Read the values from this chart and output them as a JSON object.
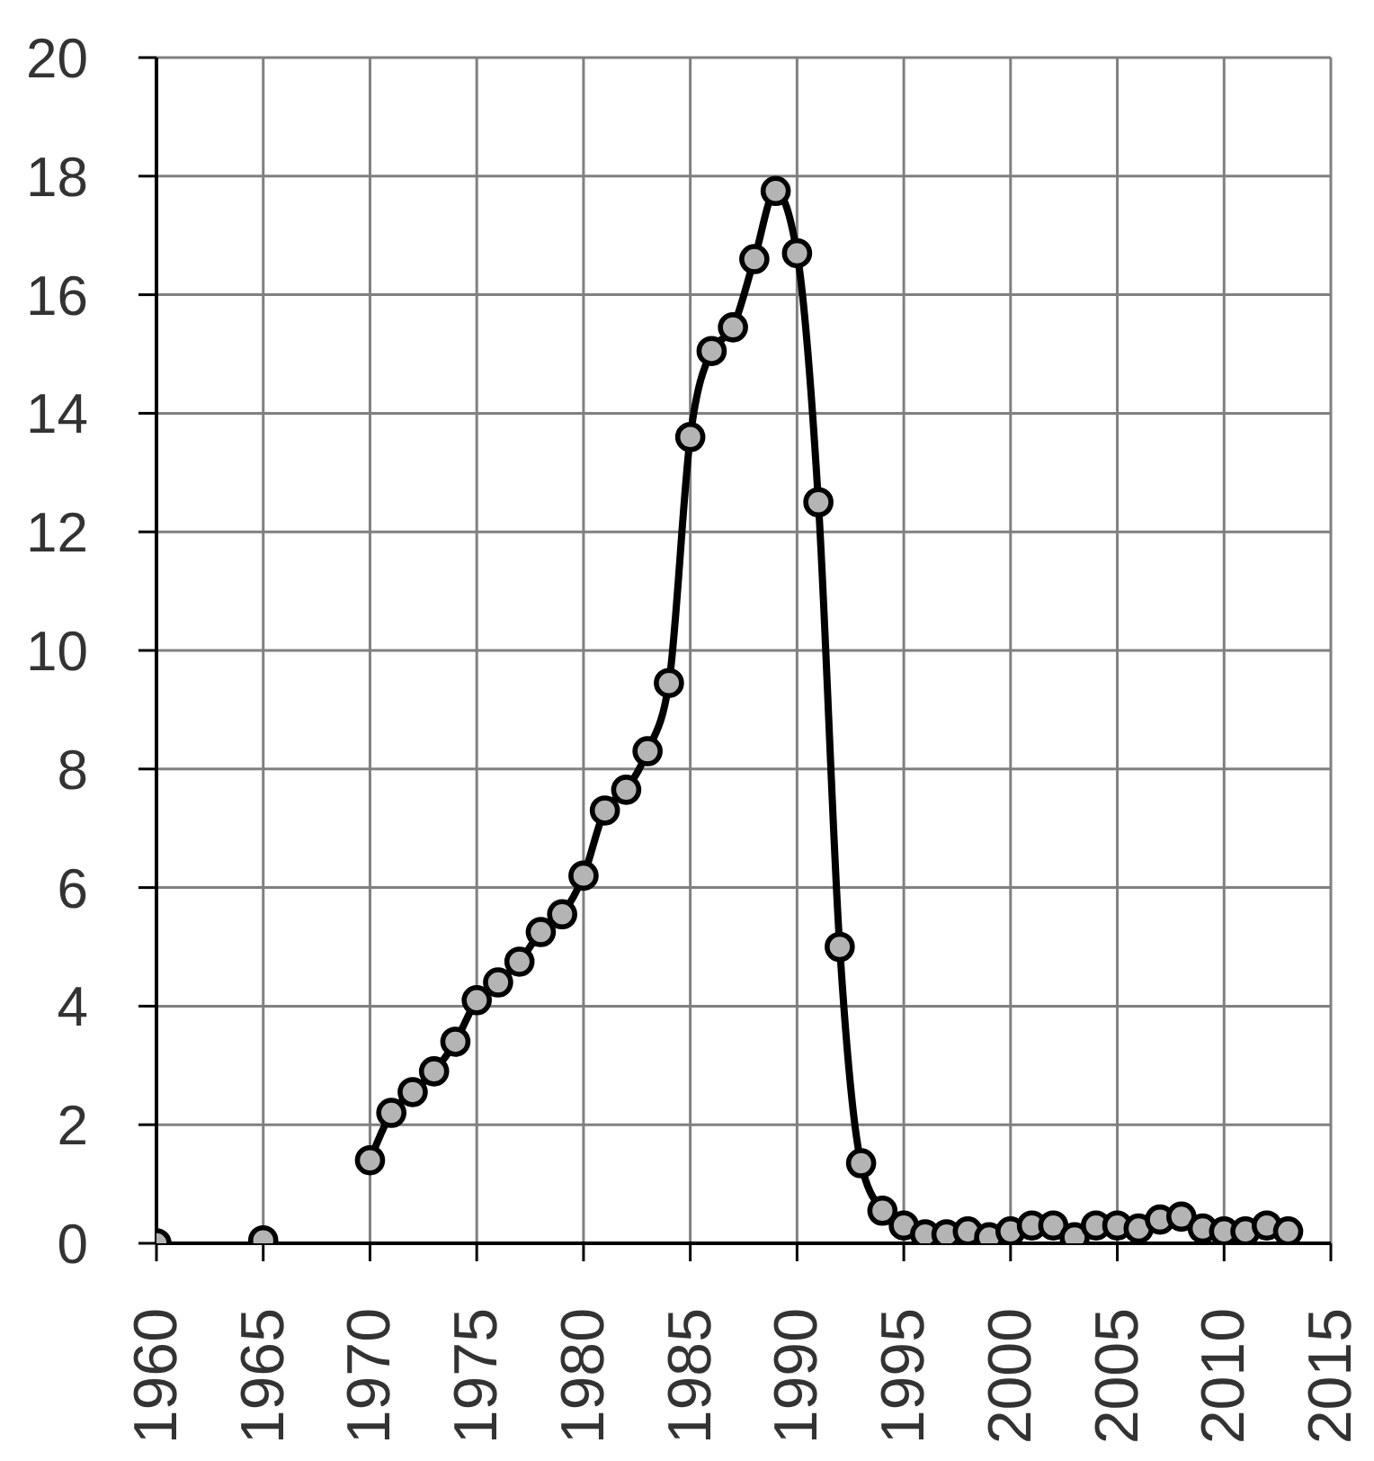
{
  "chart_data": {
    "type": "line",
    "x": [
      1960,
      1961,
      1962,
      1963,
      1964,
      1965,
      1966,
      1967,
      1968,
      1969,
      1970,
      1971,
      1972,
      1973,
      1974,
      1975,
      1976,
      1977,
      1978,
      1979,
      1980,
      1981,
      1982,
      1983,
      1984,
      1985,
      1986,
      1987,
      1988,
      1989,
      1990,
      1991,
      1992,
      1993,
      1994,
      1995,
      1996,
      1997,
      1998,
      1999,
      2000,
      2001,
      2002,
      2003,
      2004,
      2005,
      2006,
      2007,
      2008,
      2009,
      2010,
      2011,
      2012,
      2013
    ],
    "series": [
      {
        "color": "#000000",
        "values": [
          0,
          null,
          null,
          null,
          null,
          0.05,
          null,
          null,
          null,
          null,
          1.4,
          2.2,
          2.55,
          2.9,
          3.4,
          4.1,
          4.4,
          4.75,
          5.25,
          5.55,
          6.2,
          7.3,
          7.65,
          8.3,
          9.45,
          13.6,
          15.05,
          15.45,
          16.6,
          17.75,
          16.7,
          12.5,
          5.0,
          1.35,
          0.55,
          0.3,
          0.15,
          0.15,
          0.2,
          0.1,
          0.2,
          0.3,
          0.3,
          0.1,
          0.3,
          0.3,
          0.25,
          0.4,
          0.45,
          0.25,
          0.2,
          0.2,
          0.3,
          0.2
        ]
      }
    ],
    "xlim": [
      1960,
      2015
    ],
    "xticks": [
      1960,
      1965,
      1970,
      1975,
      1980,
      1985,
      1990,
      1995,
      2000,
      2005,
      2010,
      2015
    ],
    "ylim": [
      0,
      20
    ],
    "yticks": [
      0,
      2,
      4,
      6,
      8,
      10,
      12,
      14,
      16,
      18,
      20
    ],
    "grid": true,
    "marker": "circle",
    "line_style": "solid"
  }
}
